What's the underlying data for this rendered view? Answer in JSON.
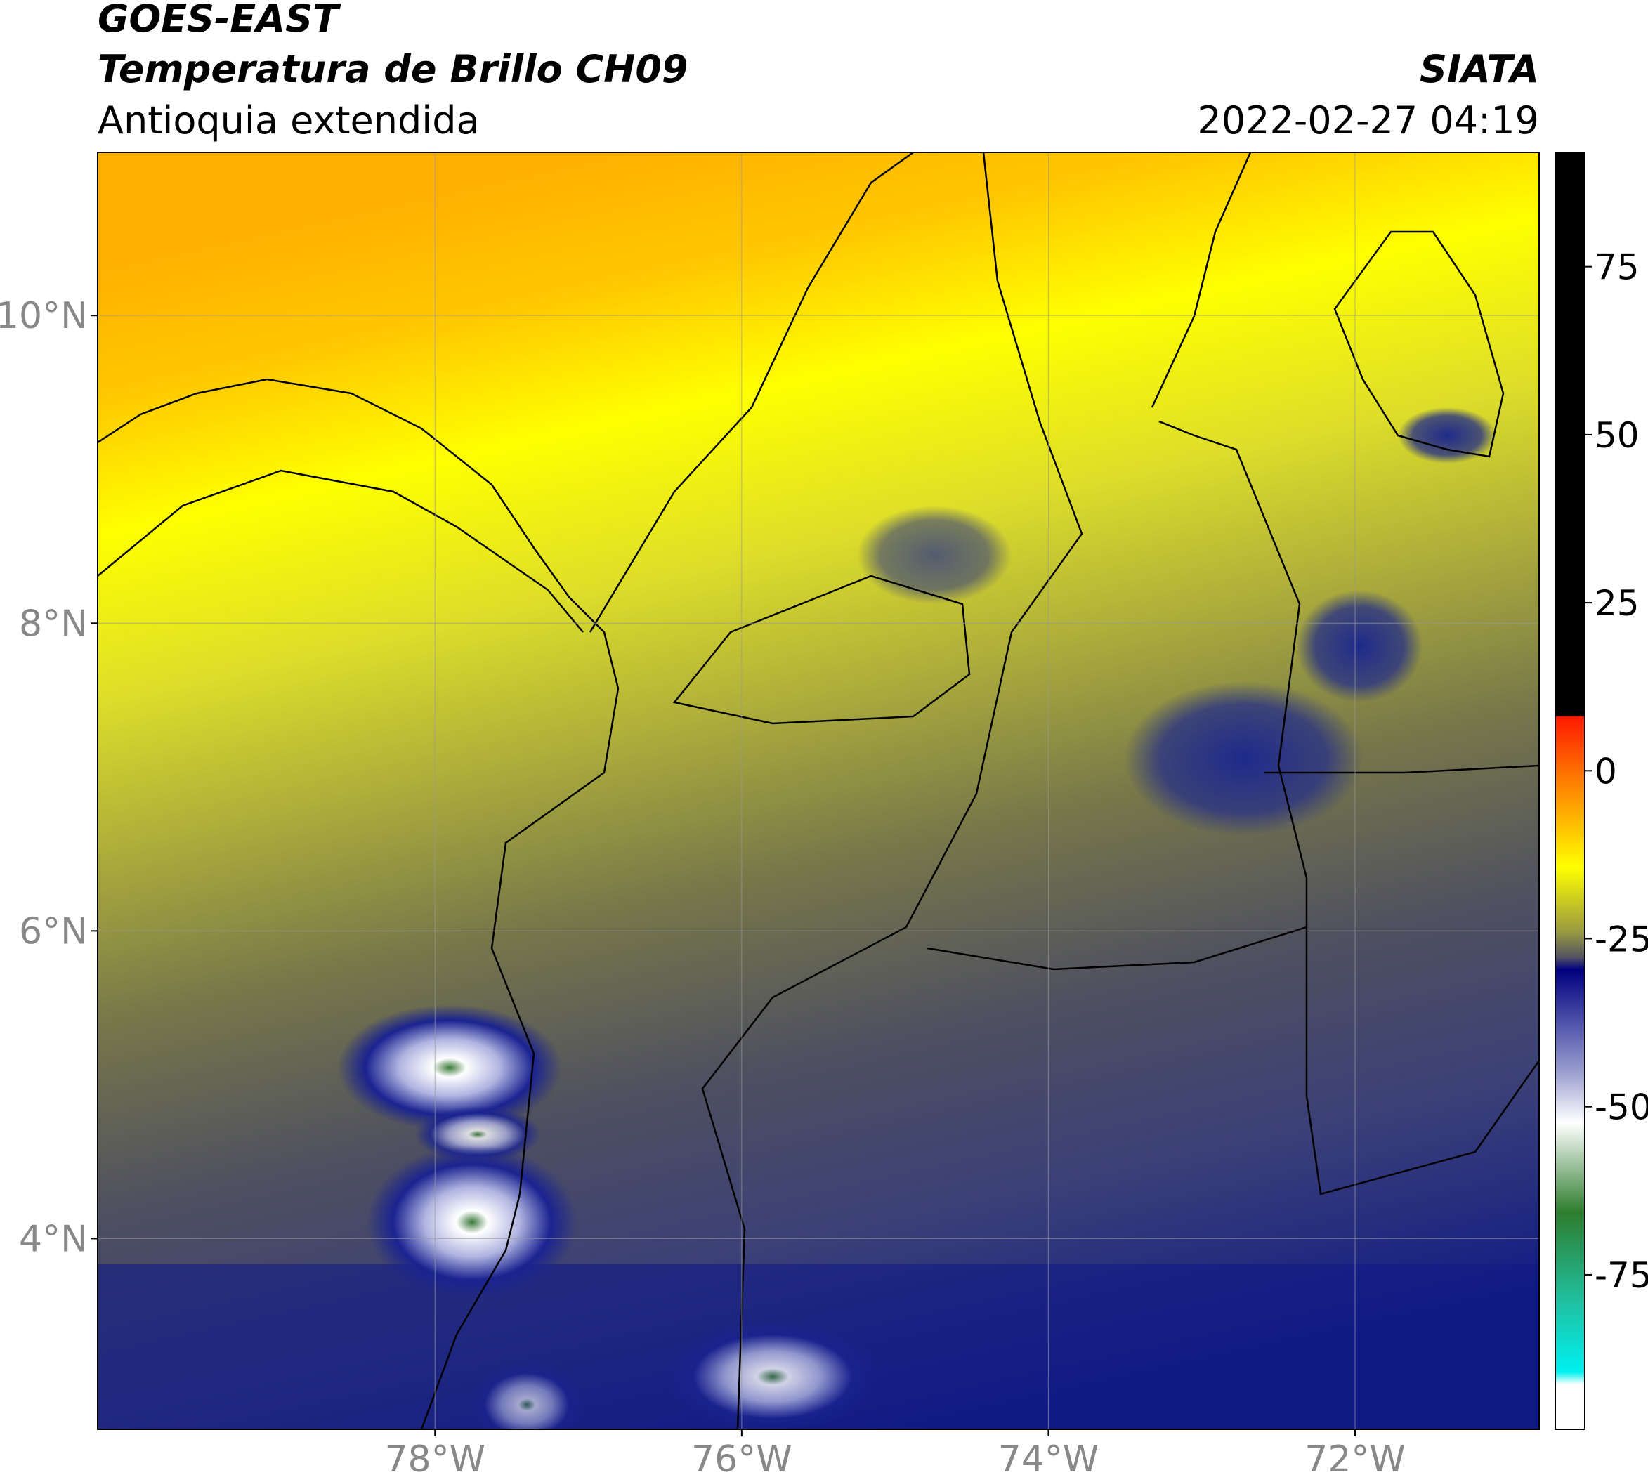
{
  "header": {
    "title": "GOES-EAST",
    "subtitle": "Temperatura de Brillo CH09",
    "region": "Antioquia extendida",
    "source": "SIATA",
    "datetime": "2022-02-27 04:19"
  },
  "map": {
    "xlim": [
      -80.2,
      -70.8
    ],
    "ylim": [
      2.76,
      11.06
    ],
    "xticks": [
      {
        "value": -78,
        "label": "78°W"
      },
      {
        "value": -76,
        "label": "76°W"
      },
      {
        "value": -74,
        "label": "74°W"
      },
      {
        "value": -72,
        "label": "72°W"
      }
    ],
    "yticks": [
      {
        "value": 4,
        "label": "4°N"
      },
      {
        "value": 6,
        "label": "6°N"
      },
      {
        "value": 8,
        "label": "8°N"
      },
      {
        "value": 10,
        "label": "10°N"
      }
    ],
    "grid": true
  },
  "colorbar": {
    "lim": [
      -98,
      92
    ],
    "ticks": [
      -75,
      -50,
      -25,
      0,
      25,
      50,
      75
    ]
  }
}
